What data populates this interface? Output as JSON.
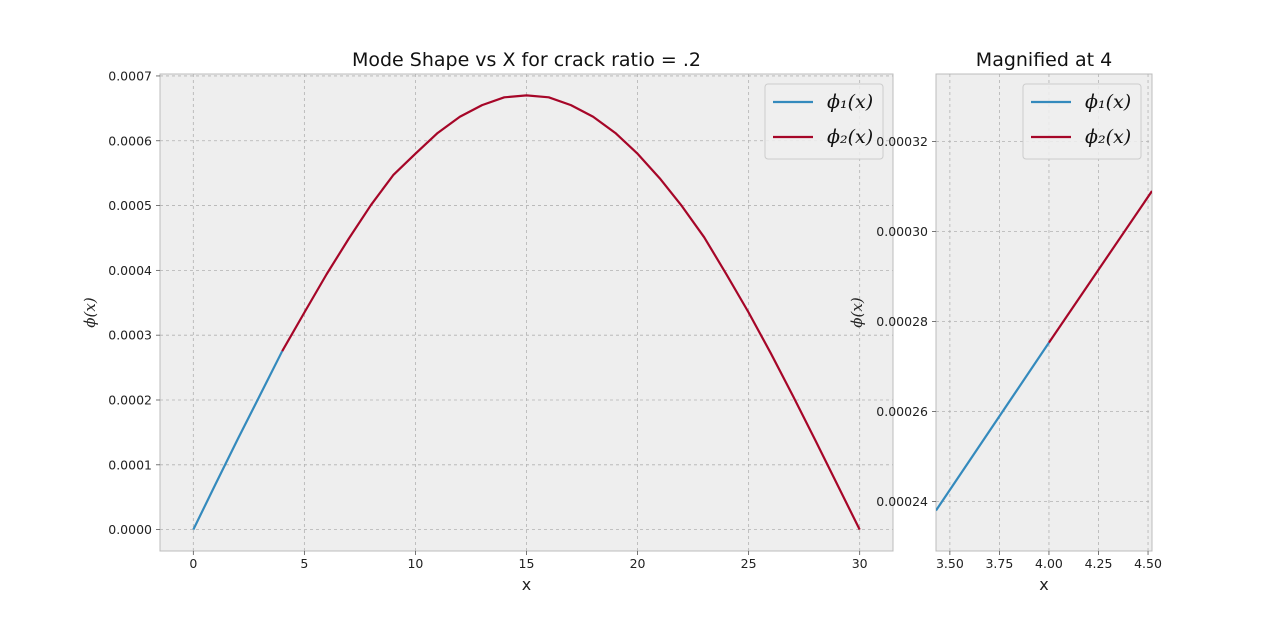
{
  "colors": {
    "series1": "#348abd",
    "series2": "#a60628",
    "axes_bg": "#eeeeee"
  },
  "chart_data": [
    {
      "type": "line",
      "title": "Mode Shape vs X for crack ratio = .2",
      "xlabel": "x",
      "ylabel": "ϕ(x)",
      "xlim": [
        -1.5,
        31.5
      ],
      "ylim": [
        -3.3e-05,
        0.000703
      ],
      "xticks": [
        0,
        5,
        10,
        15,
        20,
        25,
        30
      ],
      "xtick_labels": [
        "0",
        "5",
        "10",
        "15",
        "20",
        "25",
        "30"
      ],
      "yticks": [
        0,
        0.0001,
        0.0002,
        0.0003,
        0.0004,
        0.0005,
        0.0006,
        0.0007
      ],
      "ytick_labels": [
        "0.0000",
        "0.0001",
        "0.0002",
        "0.0003",
        "0.0004",
        "0.0005",
        "0.0006",
        "0.0007"
      ],
      "grid": true,
      "legend": "top-right",
      "series": [
        {
          "name": "ϕ₁(x)",
          "x": [
            0,
            1,
            2,
            3,
            4
          ],
          "y": [
            0,
            7.02e-05,
            0.0001396,
            0.0002073,
            0.0002753
          ]
        },
        {
          "name": "ϕ₂(x)",
          "x": [
            4,
            5,
            6,
            7,
            8,
            9,
            10,
            11,
            12,
            13,
            14,
            15,
            16,
            17,
            18,
            19,
            20,
            21,
            22,
            23,
            24,
            25,
            26,
            27,
            28,
            29,
            30
          ],
          "y": [
            0.0002753,
            0.000335,
            0.000394,
            0.000449,
            0.000501,
            0.000547,
            0.00058,
            0.000612,
            0.000637,
            0.000655,
            0.000667,
            0.00067,
            0.000667,
            0.000655,
            0.000637,
            0.000612,
            0.00058,
            0.000542,
            0.000499,
            0.000451,
            0.000394,
            0.000335,
            0.000272,
            0.000206,
            0.000138,
            6.9e-05,
            0
          ]
        }
      ]
    },
    {
      "type": "line",
      "title": "Magnified at 4",
      "xlabel": "x",
      "ylabel": "ϕ(x)",
      "xlim": [
        3.43,
        4.52
      ],
      "ylim": [
        0.000229,
        0.000335
      ],
      "xticks": [
        3.5,
        3.75,
        4.0,
        4.25,
        4.5
      ],
      "xtick_labels": [
        "3.50",
        "3.75",
        "4.00",
        "4.25",
        "4.50"
      ],
      "yticks": [
        0.00024,
        0.00026,
        0.00028,
        0.0003,
        0.00032
      ],
      "ytick_labels": [
        "0.00024",
        "0.00026",
        "0.00028",
        "0.00030",
        "0.00032"
      ],
      "grid": true,
      "legend": "top-right",
      "series": [
        {
          "name": "ϕ₁(x)",
          "x": [
            3.43,
            4.0
          ],
          "y": [
            0.000238,
            0.0002753
          ]
        },
        {
          "name": "ϕ₂(x)",
          "x": [
            4.0,
            4.52
          ],
          "y": [
            0.0002753,
            0.000309
          ]
        }
      ]
    }
  ]
}
